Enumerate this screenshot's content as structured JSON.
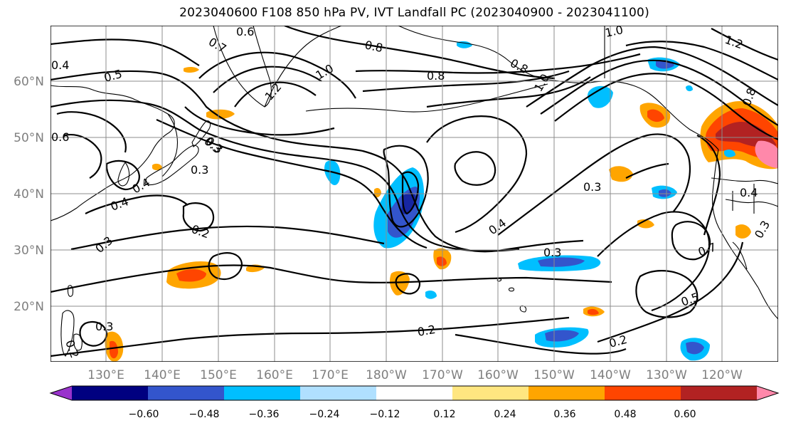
{
  "title": "2023040600 F108 850 hPa PV, IVT Landfall PC (2023040900 - 2023041100)",
  "lat_labels": [
    "60°N",
    "50°N",
    "40°N",
    "30°N",
    "20°N"
  ],
  "lon_labels": [
    "130°E",
    "140°E",
    "150°E",
    "160°E",
    "170°E",
    "180°W",
    "170°W",
    "160°W",
    "150°W",
    "140°W",
    "130°W",
    "120°W"
  ],
  "colorbar": {
    "ticks": [
      "−0.60",
      "−0.48",
      "−0.36",
      "−0.24",
      "−0.12",
      "0.12",
      "0.24",
      "0.36",
      "0.48",
      "0.60"
    ],
    "colors": [
      "#9933cc",
      "#000080",
      "#3355cc",
      "#00bfff",
      "#b0e0ff",
      "#ffffff",
      "#ffe680",
      "#ffa500",
      "#ff4500",
      "#b22222",
      "#ff88aa"
    ]
  },
  "contour_labels": [
    "0.6",
    "0.7",
    "0.8",
    "1.0",
    "1.2",
    "0.4",
    "0.5",
    "0.6",
    "0.8",
    "0.8",
    "1.0",
    "0.8",
    "1.0",
    "1.2",
    "0.4",
    "0.3",
    "0.4",
    "0.3",
    "0.3",
    "0.2",
    "0.3",
    "0.2",
    "0.2",
    "0.3",
    "0.4",
    "0.7",
    "0.5",
    "0.3",
    "0.4",
    "0.3",
    "0.2",
    "0.3"
  ]
}
